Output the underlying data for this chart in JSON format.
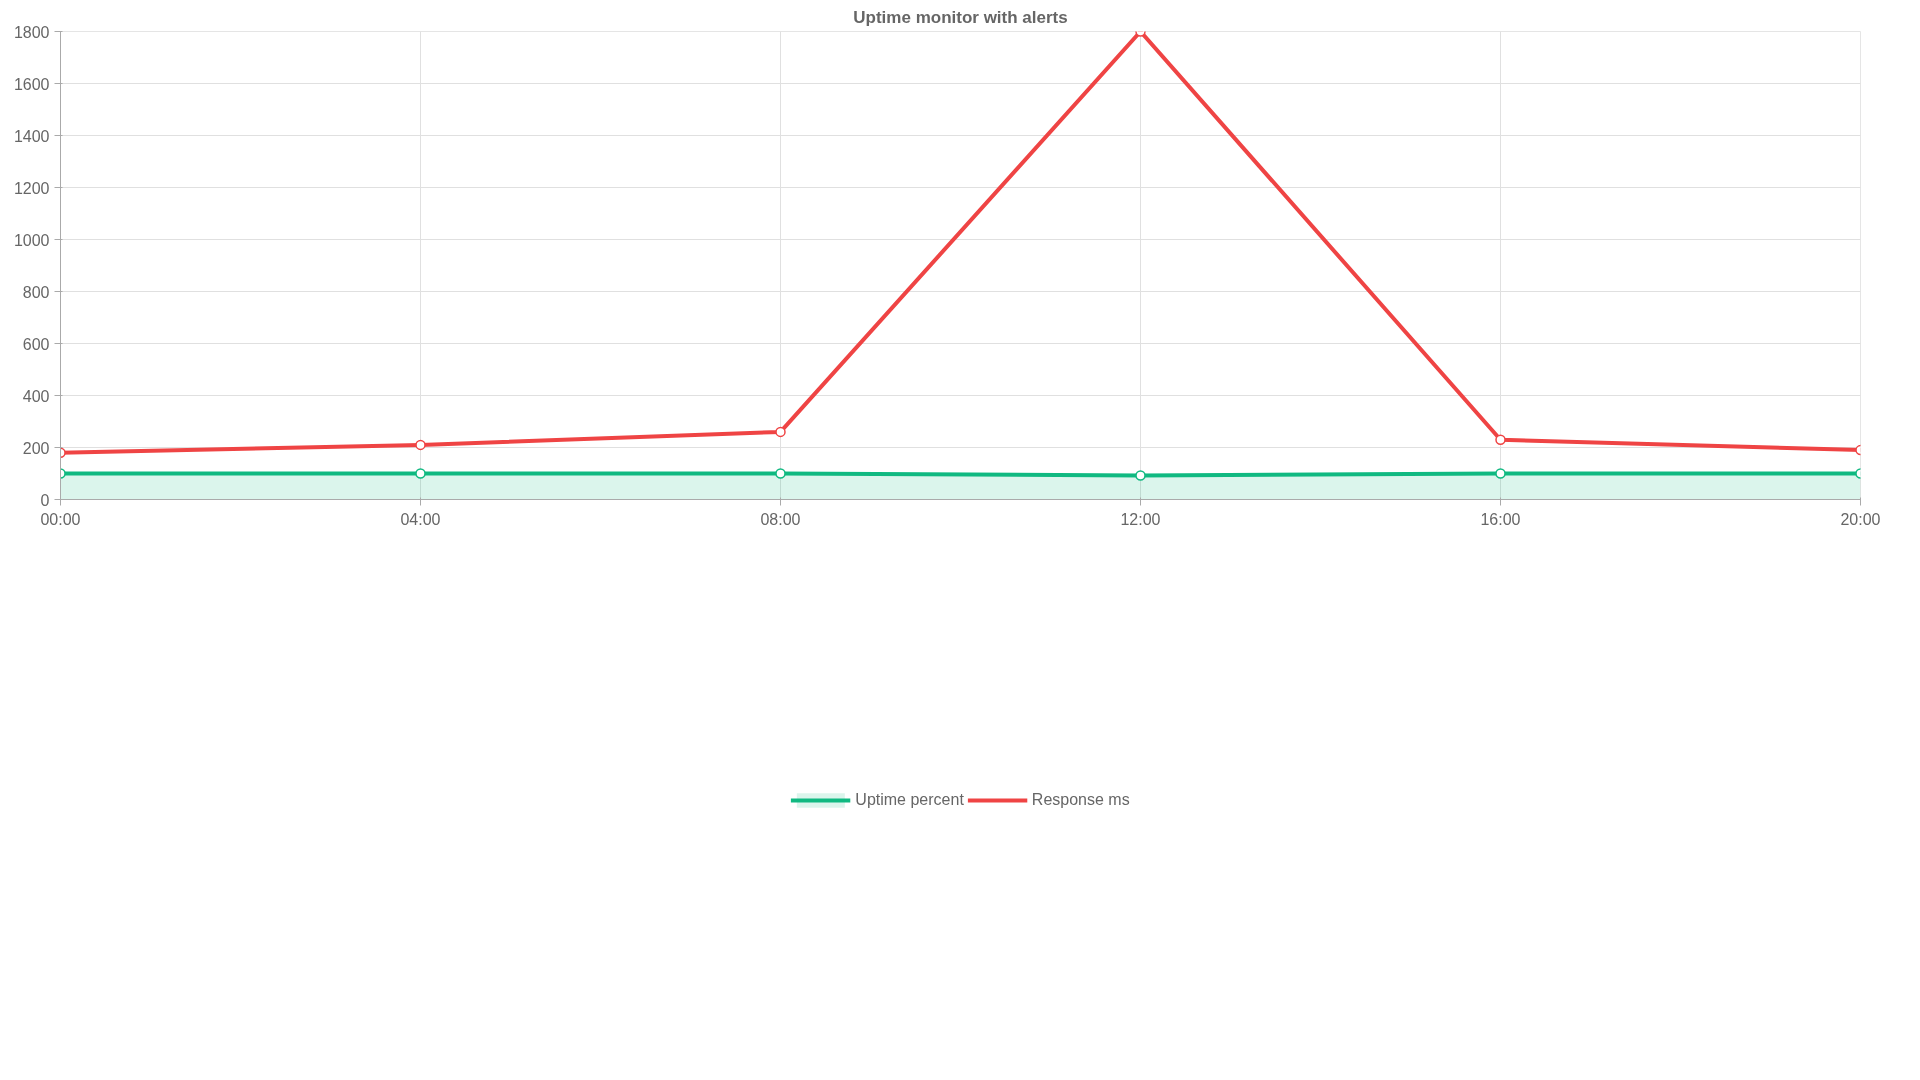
{
  "chart_data": {
    "type": "line",
    "title": "Uptime monitor with alerts",
    "categories": [
      "00:00",
      "04:00",
      "08:00",
      "12:00",
      "16:00",
      "20:00"
    ],
    "series": [
      {
        "name": "Uptime percent",
        "type": "area",
        "color": "#10b981",
        "values": [
          100,
          100,
          100,
          92,
          100,
          100
        ]
      },
      {
        "name": "Response ms",
        "color": "#ef4444",
        "values": [
          180,
          210,
          260,
          1800,
          230,
          190
        ]
      }
    ],
    "ylim": [
      0,
      1800
    ],
    "yticks": [
      0,
      200,
      400,
      600,
      800,
      1000,
      1200,
      1400,
      1600,
      1800
    ],
    "grid": true,
    "legend": "bottom",
    "marker": "circle",
    "line_style": "solid"
  }
}
